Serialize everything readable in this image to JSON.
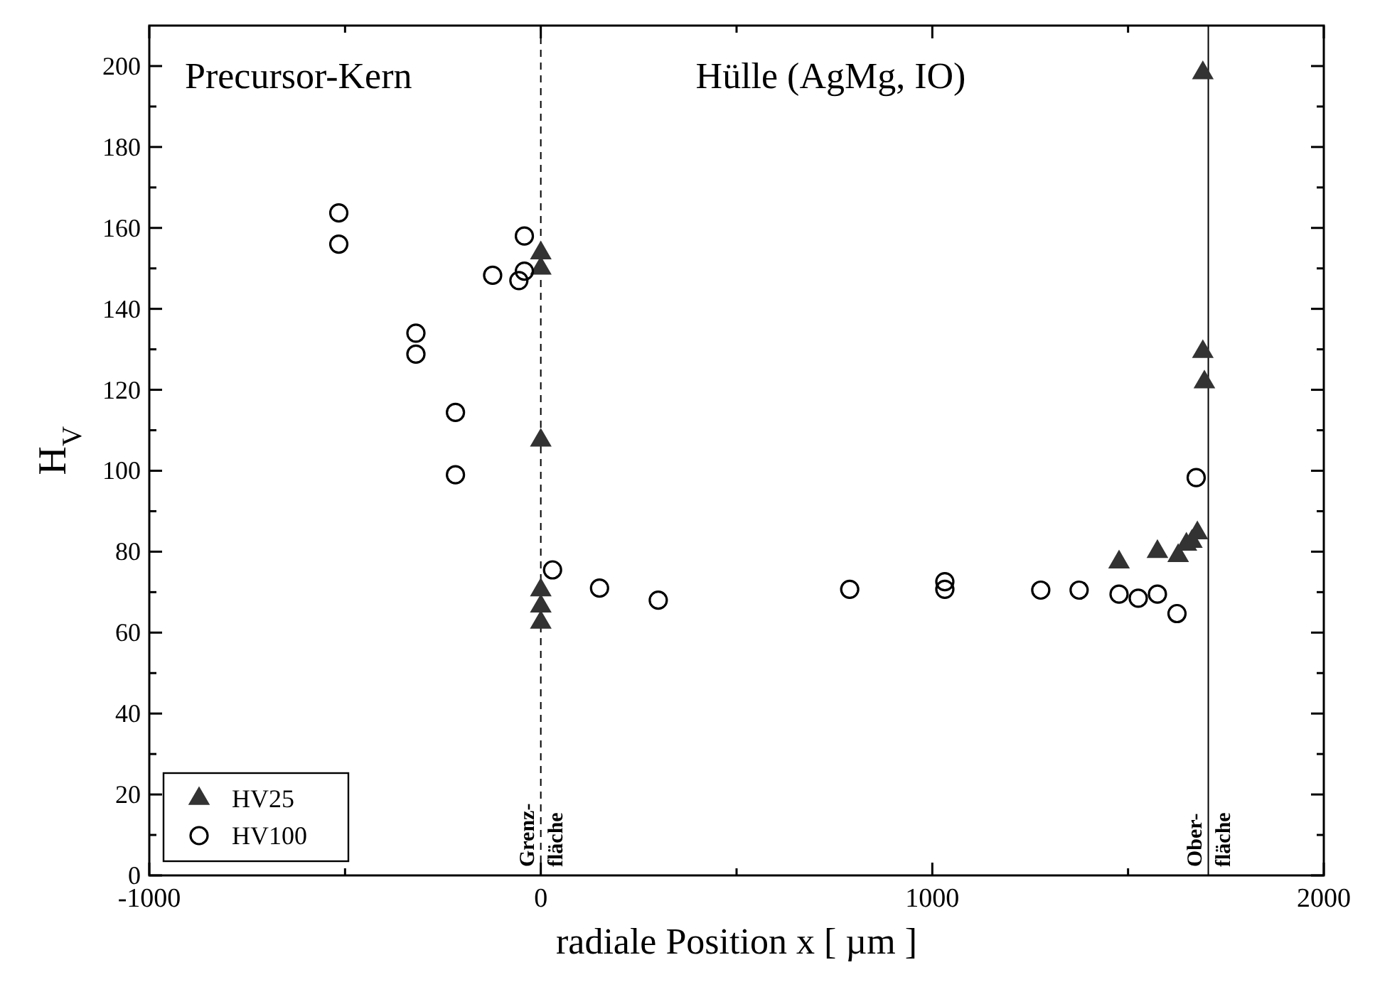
{
  "chart_data": {
    "type": "scatter",
    "xlabel": "radiale Position x  [ µm ]",
    "ylabel": "H$_{V}$",
    "xlim": [
      -1000,
      2000
    ],
    "xticks": [
      -1000,
      {
        "value": -500,
        "label": null
      },
      0,
      {
        "value": 500,
        "label": null
      },
      1000,
      {
        "value": 1500,
        "label": null
      },
      2000
    ],
    "ylim": [
      0,
      210
    ],
    "yticks": [
      0,
      {
        "value": 10,
        "label": null
      },
      20,
      {
        "value": 30,
        "label": null
      },
      40,
      {
        "value": 50,
        "label": null
      },
      60,
      {
        "value": 70,
        "label": null
      },
      80,
      {
        "value": 90,
        "label": null
      },
      100,
      {
        "value": 110,
        "label": null
      },
      120,
      {
        "value": 130,
        "label": null
      },
      140,
      {
        "value": 150,
        "label": null
      },
      160,
      {
        "value": 170,
        "label": null
      },
      180,
      {
        "value": 190,
        "label": null
      },
      200
    ],
    "legend": "bottom left",
    "grid": false,
    "series": [
      {
        "name": "HV25",
        "color": "#333333",
        "marker": "triangle",
        "x": [
          0,
          0,
          0,
          0,
          0,
          0,
          1477,
          1575,
          1628,
          1649,
          1663,
          1677,
          1691,
          1691,
          1695
        ],
        "values": [
          153.8,
          150,
          107.5,
          70.5,
          66.5,
          62.5,
          77.4,
          80,
          79,
          81.8,
          82.5,
          84.6,
          198.3,
          129.4,
          121.9
        ]
      },
      {
        "name": "HV100",
        "color": "#000000",
        "marker": "circle",
        "x": [
          -516,
          -516,
          -319,
          -319,
          -218,
          -218,
          -123,
          -56,
          -42,
          -42,
          30,
          150,
          300,
          789,
          1032,
          1032,
          1277,
          1375,
          1477,
          1526,
          1575,
          1625,
          1674
        ],
        "values": [
          163.7,
          156,
          134,
          128.8,
          114.4,
          99,
          148.3,
          147,
          149.3,
          158,
          75.5,
          71,
          68,
          70.7,
          72.6,
          70.7,
          70.5,
          70.5,
          69.5,
          68.5,
          69.5,
          64.7,
          98.3
        ]
      }
    ],
    "ref_lines": [
      {
        "axis": "x",
        "value": 0,
        "label": "Grenz-\nfläche",
        "line_style": "dashed",
        "color": "#000000"
      },
      {
        "axis": "x",
        "value": 1705,
        "label": "Ober-\nfläche",
        "line_style": "solid",
        "color": "#000000"
      }
    ],
    "annotations": [
      "Precursor-Kern",
      "Hülle (AgMg, IO)"
    ]
  }
}
